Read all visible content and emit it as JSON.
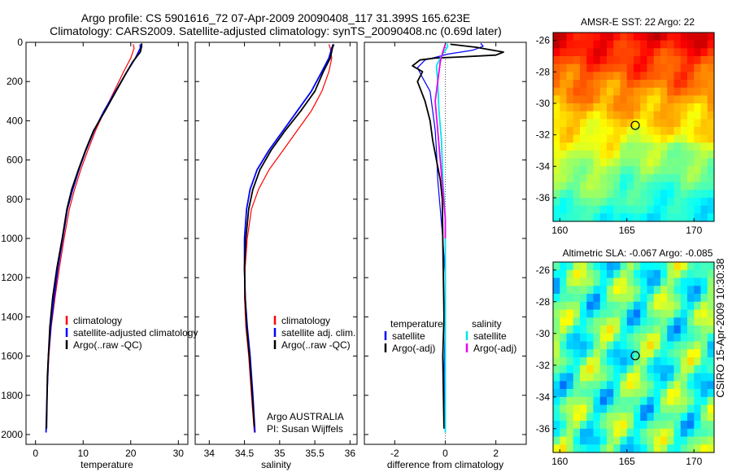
{
  "figure": {
    "title_line1": "Argo profile: CS 5901616_72 07-Apr-2009 20090408_117 31.399S 165.623E",
    "title_line2": "Climatology: CARS2009. Satellite-adjusted climatology: synTS_20090408.nc (0.69d later)",
    "side_label": "CSIRO 15-Apr-2009 10:30:38"
  },
  "colors": {
    "climatology": "#ff0000",
    "satellite": "#0000ff",
    "argo": "#000000",
    "satellite_diff_salinity": "#00e5ee",
    "argo_diff_salinity": "#ee00ee",
    "zero_line": "#555555",
    "profile_marker": "#000000"
  },
  "chart_data": [
    {
      "type": "line",
      "panel": "temperature",
      "xlabel": "temperature",
      "ylabel": "",
      "xlim": [
        -2,
        32
      ],
      "ylim": [
        2050,
        0
      ],
      "xticks": [
        0,
        10,
        20,
        30
      ],
      "yticks": [
        0,
        200,
        400,
        600,
        800,
        1000,
        1200,
        1400,
        1600,
        1800,
        2000
      ],
      "legend": {
        "position": "lower-right",
        "entries": [
          "climatology",
          "satellite-adjusted climatology",
          "Argo(..raw -QC)"
        ]
      },
      "series": [
        {
          "name": "climatology",
          "color_key": "climatology",
          "x": [
            20.5,
            20.7,
            20.0,
            18.5,
            16.5,
            14.5,
            12.6,
            11.0,
            9.5,
            8.2,
            7.1,
            6.0,
            5.0,
            4.1,
            3.3,
            2.8,
            2.4,
            2.2
          ],
          "y": [
            10,
            30,
            80,
            150,
            250,
            350,
            450,
            550,
            650,
            750,
            850,
            1000,
            1150,
            1300,
            1450,
            1600,
            1800,
            1970
          ]
        },
        {
          "name": "satellite-adjusted climatology",
          "color_key": "satellite",
          "x": [
            22.0,
            22.0,
            21.0,
            19.2,
            16.8,
            14.4,
            12.3,
            10.6,
            9.1,
            7.8,
            6.7,
            5.7,
            4.7,
            3.9,
            3.2,
            2.7,
            2.4,
            2.2
          ],
          "y": [
            10,
            30,
            80,
            150,
            250,
            350,
            450,
            550,
            650,
            750,
            850,
            1000,
            1150,
            1300,
            1450,
            1600,
            1800,
            1990
          ]
        },
        {
          "name": "Argo(..raw -QC)",
          "color_key": "argo",
          "x": [
            22.3,
            22.3,
            22.0,
            20.4,
            19.2,
            16.9,
            14.6,
            12.2,
            10.5,
            9.0,
            7.6,
            6.6,
            5.6,
            4.5,
            3.6,
            3.0,
            2.5,
            2.3
          ],
          "y": [
            5,
            20,
            50,
            100,
            150,
            250,
            350,
            450,
            550,
            650,
            750,
            850,
            1000,
            1150,
            1300,
            1450,
            1700,
            1970
          ]
        }
      ]
    },
    {
      "type": "line",
      "panel": "salinity",
      "xlabel": "salinity",
      "ylabel": "",
      "xlim": [
        33.8,
        36.1
      ],
      "ylim": [
        2050,
        0
      ],
      "xticks": [
        34,
        34.5,
        35,
        35.5,
        36
      ],
      "xticklabels": [
        "34",
        "34.5",
        "35",
        "35.5",
        "36"
      ],
      "legend": {
        "position": "lower-right",
        "entries": [
          "climatology",
          "satellite adj. clim.",
          "Argo(..raw -QC)"
        ]
      },
      "annotation_line1": "Argo AUSTRALIA",
      "annotation_line2": "PI: Susan Wijffels",
      "series": [
        {
          "name": "climatology",
          "color_key": "climatology",
          "x": [
            35.7,
            35.72,
            35.74,
            35.7,
            35.6,
            35.45,
            35.25,
            35.05,
            34.85,
            34.7,
            34.6,
            34.54,
            34.51,
            34.5,
            34.52,
            34.56,
            34.6,
            34.64
          ],
          "y": [
            10,
            30,
            80,
            150,
            250,
            350,
            450,
            550,
            650,
            750,
            850,
            1000,
            1150,
            1300,
            1450,
            1600,
            1800,
            1990
          ]
        },
        {
          "name": "satellite adj. clim.",
          "color_key": "satellite",
          "x": [
            35.76,
            35.74,
            35.7,
            35.6,
            35.45,
            35.25,
            35.05,
            34.85,
            34.68,
            34.58,
            34.53,
            34.5,
            34.5,
            34.51,
            34.54,
            34.58,
            34.62,
            34.65
          ],
          "y": [
            10,
            30,
            80,
            150,
            250,
            350,
            450,
            550,
            650,
            750,
            850,
            1000,
            1150,
            1300,
            1450,
            1600,
            1800,
            1990
          ]
        },
        {
          "name": "Argo(..raw -QC)",
          "color_key": "argo",
          "x": [
            35.77,
            35.75,
            35.72,
            35.62,
            35.5,
            35.3,
            35.08,
            34.88,
            34.72,
            34.62,
            34.56,
            34.52,
            34.5,
            34.51,
            34.53,
            34.57,
            34.61,
            34.64
          ],
          "y": [
            10,
            30,
            80,
            150,
            250,
            350,
            450,
            550,
            650,
            750,
            850,
            1000,
            1150,
            1300,
            1450,
            1600,
            1800,
            1960
          ]
        }
      ]
    },
    {
      "type": "line",
      "panel": "difference",
      "xlabel": "difference from climatology",
      "ylabel": "",
      "xlim": [
        -3.2,
        3.2
      ],
      "ylim": [
        2050,
        0
      ],
      "xticks": [
        -2,
        0,
        2
      ],
      "legend": {
        "position": "lower-middle",
        "entries": [
          "temperature",
          "satellite",
          "Argo(-adj)",
          "salinity",
          "satellite",
          "Argo(-adj)"
        ]
      },
      "series": [
        {
          "name": "temperature satellite",
          "color_key": "satellite",
          "x": [
            1.4,
            1.5,
            1.1,
            0.1,
            -0.8,
            -1.1,
            -0.9,
            -0.6,
            -0.5,
            -0.4,
            -0.35,
            -0.3,
            -0.2,
            -0.1,
            0.0,
            0.0,
            -0.05,
            0.0
          ],
          "y": [
            5,
            20,
            40,
            60,
            90,
            130,
            180,
            250,
            350,
            450,
            550,
            700,
            850,
            1000,
            1200,
            1400,
            1700,
            1990
          ]
        },
        {
          "name": "temperature Argo(-adj)",
          "color_key": "argo",
          "x": [
            0.2,
            1.2,
            2.3,
            2.0,
            0.5,
            -0.4,
            -1.0,
            -1.3,
            -0.9,
            -1.1,
            -0.8,
            -0.6,
            -0.5,
            -0.35,
            -0.2,
            -0.12,
            -0.1,
            -0.05,
            -0.1,
            -0.05
          ],
          "y": [
            10,
            25,
            50,
            65,
            75,
            80,
            90,
            120,
            150,
            200,
            300,
            400,
            500,
            600,
            700,
            800,
            1000,
            1400,
            1600,
            1970
          ]
        },
        {
          "name": "salinity satellite",
          "color_key": "satellite_diff_salinity",
          "x": [
            0.05,
            0.1,
            0.0,
            -0.15,
            -0.35,
            -0.3,
            -0.25,
            -0.15,
            -0.1,
            0.0,
            0.0,
            0.0,
            0.0
          ],
          "y": [
            5,
            20,
            40,
            70,
            120,
            200,
            350,
            500,
            700,
            900,
            1200,
            1600,
            1990
          ]
        },
        {
          "name": "salinity Argo(-adj)",
          "color_key": "argo_diff_salinity",
          "x": [
            0.0,
            -0.1,
            -0.2,
            -0.3,
            -0.4,
            -0.3,
            -0.2,
            -0.1,
            0.0,
            0.0
          ],
          "y": [
            10,
            50,
            100,
            200,
            300,
            450,
            600,
            750,
            900,
            1000
          ]
        }
      ]
    },
    {
      "type": "heatmap",
      "panel": "sst_map",
      "title": "AMSR-E SST: 22 Argo: 22",
      "xlim": [
        159.5,
        171.5
      ],
      "ylim": [
        -37.5,
        -25.5
      ],
      "xticks": [
        160,
        165,
        170
      ],
      "yticks": [
        -26,
        -28,
        -30,
        -32,
        -34,
        -36
      ],
      "colormap": "jet",
      "profile_location": {
        "lon": 165.623,
        "lat": -31.399
      }
    },
    {
      "type": "heatmap",
      "panel": "sla_map",
      "title": "Altimetric SLA: -0.067 Argo: -0.085",
      "xlim": [
        159.5,
        171.5
      ],
      "ylim": [
        -37.5,
        -25.5
      ],
      "xticks": [
        160,
        165,
        170
      ],
      "yticks": [
        -26,
        -28,
        -30,
        -32,
        -34,
        -36
      ],
      "colormap": "jet",
      "profile_location": {
        "lon": 165.623,
        "lat": -31.399
      }
    }
  ]
}
